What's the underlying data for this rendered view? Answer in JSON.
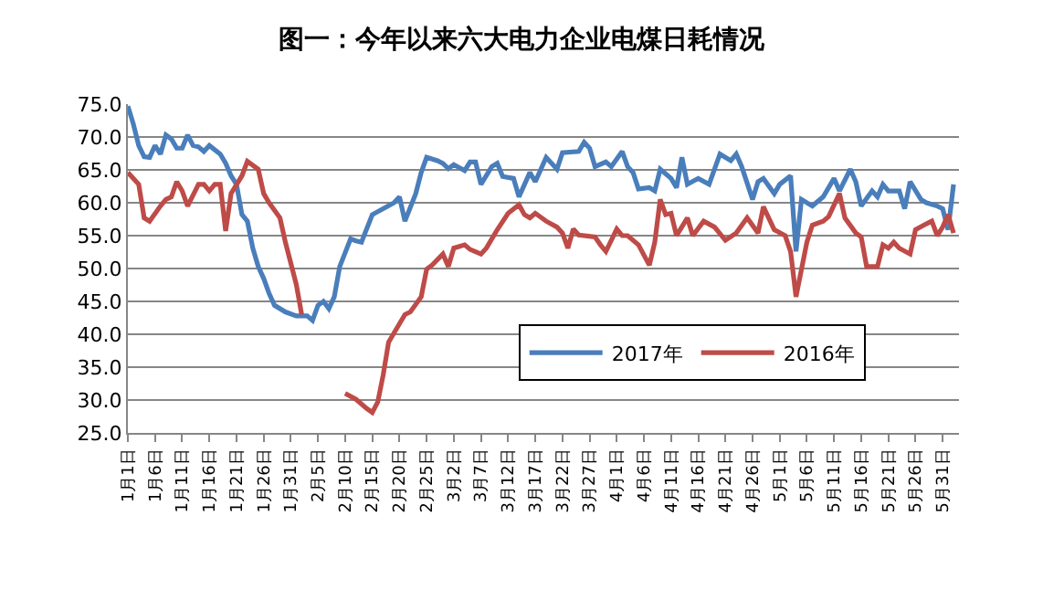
{
  "chart_data": {
    "type": "line",
    "title": "图一：今年以来六大电力企业电煤日耗情况",
    "xlim": [
      "--01-01",
      "--06-03"
    ],
    "xticks": [
      {
        "value": "--01-01",
        "label": "1月1日"
      },
      {
        "value": "--01-06",
        "label": "1月6日"
      },
      {
        "value": "--01-11",
        "label": "1月11日"
      },
      {
        "value": "--01-16",
        "label": "1月16日"
      },
      {
        "value": "--01-21",
        "label": "1月21日"
      },
      {
        "value": "--01-26",
        "label": "1月26日"
      },
      {
        "value": "--01-31",
        "label": "1月31日"
      },
      {
        "value": "--02-05",
        "label": "2月5日"
      },
      {
        "value": "--02-10",
        "label": "2月10日"
      },
      {
        "value": "--02-15",
        "label": "2月15日"
      },
      {
        "value": "--02-20",
        "label": "2月20日"
      },
      {
        "value": "--02-25",
        "label": "2月25日"
      },
      {
        "value": "--03-02",
        "label": "3月2日"
      },
      {
        "value": "--03-07",
        "label": "3月7日"
      },
      {
        "value": "--03-12",
        "label": "3月12日"
      },
      {
        "value": "--03-17",
        "label": "3月17日"
      },
      {
        "value": "--03-22",
        "label": "3月22日"
      },
      {
        "value": "--03-27",
        "label": "3月27日"
      },
      {
        "value": "--04-01",
        "label": "4月1日"
      },
      {
        "value": "--04-06",
        "label": "4月6日"
      },
      {
        "value": "--04-11",
        "label": "4月11日"
      },
      {
        "value": "--04-16",
        "label": "4月16日"
      },
      {
        "value": "--04-21",
        "label": "4月21日"
      },
      {
        "value": "--04-26",
        "label": "4月26日"
      },
      {
        "value": "--05-01",
        "label": "5月1日"
      },
      {
        "value": "--05-06",
        "label": "5月6日"
      },
      {
        "value": "--05-11",
        "label": "5月11日"
      },
      {
        "value": "--05-16",
        "label": "5月16日"
      },
      {
        "value": "--05-21",
        "label": "5月21日"
      },
      {
        "value": "--05-26",
        "label": "5月26日"
      },
      {
        "value": "--05-31",
        "label": "5月31日"
      }
    ],
    "ylim": [
      25,
      75
    ],
    "yticks": [
      {
        "value": 25,
        "label": "25.0"
      },
      {
        "value": 30,
        "label": "30.0"
      },
      {
        "value": 35,
        "label": "35.0"
      },
      {
        "value": 40,
        "label": "40.0"
      },
      {
        "value": 45,
        "label": "45.0"
      },
      {
        "value": 50,
        "label": "50.0"
      },
      {
        "value": 55,
        "label": "55.0"
      },
      {
        "value": 60,
        "label": "60.0"
      },
      {
        "value": 65,
        "label": "65.0"
      },
      {
        "value": 70,
        "label": "70.0"
      },
      {
        "value": 75,
        "label": "75.0"
      }
    ],
    "grid": "y",
    "legend": "bottom right",
    "marker": "none",
    "line_style": "solid",
    "series": [
      {
        "name": "2017年",
        "color": "#4a7ebb",
        "x": [
          "--01-01",
          "--01-02",
          "--01-03",
          "--01-04",
          "--01-05",
          "--01-06",
          "--01-07",
          "--01-08",
          "--01-09",
          "--01-10",
          "--01-11",
          "--01-12",
          "--01-13",
          "--01-14",
          "--01-15",
          "--01-16",
          "--01-18",
          "--01-19",
          "--01-20",
          "--01-21",
          "--01-22",
          "--01-23",
          "--01-24",
          "--01-25",
          "--01-26",
          "--01-27",
          "--01-28",
          "--01-30",
          "--02-01",
          "--02-03",
          "--02-04",
          "--02-05",
          "--02-06",
          "--02-07",
          "--02-08",
          "--02-09",
          "--02-11",
          "--02-12",
          "--02-13",
          "--02-15",
          "--02-17",
          "--02-19",
          "--02-20",
          "--02-21",
          "--02-23",
          "--02-24",
          "--02-25",
          "--02-27",
          "--02-28",
          "--03-01",
          "--03-02",
          "--03-04",
          "--03-05",
          "--03-06",
          "--03-07",
          "--03-09",
          "--03-10",
          "--03-11",
          "--03-13",
          "--03-14",
          "--03-16",
          "--03-17",
          "--03-19",
          "--03-20",
          "--03-21",
          "--03-22",
          "--03-25",
          "--03-26",
          "--03-27",
          "--03-28",
          "--03-30",
          "--03-31",
          "--04-02",
          "--04-03",
          "--04-04",
          "--04-05",
          "--04-07",
          "--04-08",
          "--04-09",
          "--04-11",
          "--04-12",
          "--04-13",
          "--04-14",
          "--04-16",
          "--04-18",
          "--04-20",
          "--04-22",
          "--04-23",
          "--04-24",
          "--04-26",
          "--04-27",
          "--04-28",
          "--04-30",
          "--05-01",
          "--05-03",
          "--05-04",
          "--05-05",
          "--05-07",
          "--05-09",
          "--05-11",
          "--05-12",
          "--05-14",
          "--05-15",
          "--05-16",
          "--05-18",
          "--05-19",
          "--05-20",
          "--05-21",
          "--05-23",
          "--05-24",
          "--05-25",
          "--05-27",
          "--05-28",
          "--05-30",
          "--05-31",
          "--06-01",
          "--06-02"
        ],
        "values": [
          74.7,
          72,
          68.7,
          67,
          66.9,
          68.7,
          67.4,
          70.3,
          69.7,
          68.3,
          68.3,
          70.3,
          68.7,
          68.5,
          67.8,
          68.7,
          67.4,
          66,
          64.1,
          62.8,
          58.2,
          57.2,
          53.1,
          50.3,
          48.5,
          46.2,
          44.4,
          43.4,
          42.8,
          42.8,
          42.1,
          44.4,
          45,
          43.9,
          45.7,
          50.3,
          54.5,
          54.2,
          54,
          58.2,
          59.1,
          60,
          60.9,
          57.2,
          61.4,
          64.6,
          66.9,
          66.4,
          66,
          65.2,
          65.8,
          64.9,
          66.2,
          66.2,
          62.8,
          65.5,
          66,
          64,
          63.7,
          60.9,
          64.6,
          63.2,
          66.9,
          66,
          65.1,
          67.6,
          67.8,
          69.2,
          68.3,
          65.5,
          66.2,
          65.5,
          67.8,
          65.5,
          64.6,
          62.1,
          62.3,
          61.8,
          65.1,
          63.7,
          62.3,
          66.9,
          62.8,
          63.7,
          62.8,
          67.4,
          66.4,
          67.4,
          65.5,
          60.5,
          63.2,
          63.7,
          61.4,
          62.8,
          64.1,
          52.6,
          60.5,
          59.5,
          60.9,
          63.7,
          61.8,
          65.1,
          63.2,
          59.5,
          61.8,
          60.9,
          62.8,
          61.8,
          61.8,
          59.1,
          63.2,
          60.5,
          60,
          59.5,
          59.1,
          55.9,
          62.8
        ]
      },
      {
        "name": "2016年",
        "color": "#be4b48",
        "x": [
          "--01-01",
          "--01-03",
          "--01-04",
          "--01-05",
          "--01-07",
          "--01-08",
          "--01-09",
          "--01-10",
          "--01-11",
          "--01-12",
          "--01-14",
          "--01-15",
          "--01-16",
          "--01-17",
          "--01-18",
          "--01-19",
          "--01-20",
          "--01-22",
          "--01-23",
          "--01-25",
          "--01-26",
          "--01-27",
          "--01-29",
          "--01-30",
          "--01-31",
          "--02-01",
          "--02-02",
          "--02-05",
          "--02-10",
          "--02-12",
          "--02-14",
          "--02-15",
          "--02-16",
          "--02-17",
          "--02-18",
          "--02-20",
          "--02-21",
          "--02-22",
          "--02-24",
          "--02-25",
          "--02-26",
          "--02-28",
          "--03-01",
          "--03-02",
          "--03-04",
          "--03-05",
          "--03-07",
          "--03-08",
          "--03-10",
          "--03-12",
          "--03-14",
          "--03-15",
          "--03-16",
          "--03-17",
          "--03-19",
          "--03-21",
          "--03-22",
          "--03-23",
          "--03-24",
          "--03-25",
          "--03-28",
          "--03-29",
          "--03-30",
          "--04-01",
          "--04-02",
          "--04-03",
          "--04-05",
          "--04-07",
          "--04-08",
          "--04-09",
          "--04-10",
          "--04-11",
          "--04-12",
          "--04-14",
          "--04-15",
          "--04-17",
          "--04-19",
          "--04-21",
          "--04-23",
          "--04-25",
          "--04-27",
          "--04-28",
          "--04-30",
          "--05-02",
          "--05-03",
          "--05-04",
          "--05-06",
          "--05-07",
          "--05-09",
          "--05-10",
          "--05-12",
          "--05-13",
          "--05-15",
          "--05-16",
          "--05-17",
          "--05-19",
          "--05-20",
          "--05-21",
          "--05-22",
          "--05-23",
          "--05-25",
          "--05-26",
          "--05-28",
          "--05-29",
          "--05-30",
          "--05-31",
          "--06-01",
          "--06-02"
        ],
        "values": [
          64.6,
          62.8,
          57.7,
          57.2,
          59.5,
          60.5,
          60.9,
          63.2,
          61.8,
          59.5,
          62.8,
          62.8,
          61.8,
          62.8,
          62.8,
          55.7,
          61.4,
          64.1,
          66.3,
          65.1,
          61.4,
          60,
          57.7,
          54,
          50.8,
          47.6,
          43,
          null,
          31,
          30.1,
          28.7,
          28.1,
          29.7,
          33.8,
          38.8,
          41.6,
          43,
          43.4,
          45.7,
          49.9,
          50.5,
          52.2,
          50.3,
          53.1,
          53.6,
          52.9,
          52.2,
          53.1,
          55.9,
          58.4,
          59.7,
          58.2,
          57.7,
          58.4,
          57.2,
          56.3,
          55.4,
          53.1,
          56,
          55.1,
          54.8,
          53.6,
          52.6,
          56,
          55,
          55,
          53.6,
          50.5,
          54,
          60.5,
          58.2,
          58.4,
          55,
          57.7,
          55,
          57.2,
          56.3,
          54.3,
          55.4,
          57.7,
          55.4,
          59.4,
          55.9,
          55,
          52.6,
          45.7,
          54,
          56.6,
          57.2,
          57.9,
          61.4,
          57.7,
          55.4,
          54.8,
          50.3,
          50.3,
          53.6,
          53.1,
          54,
          53.1,
          52.2,
          55.9,
          56.8,
          57.2,
          55,
          56.3,
          58.2,
          55.4
        ]
      }
    ]
  }
}
